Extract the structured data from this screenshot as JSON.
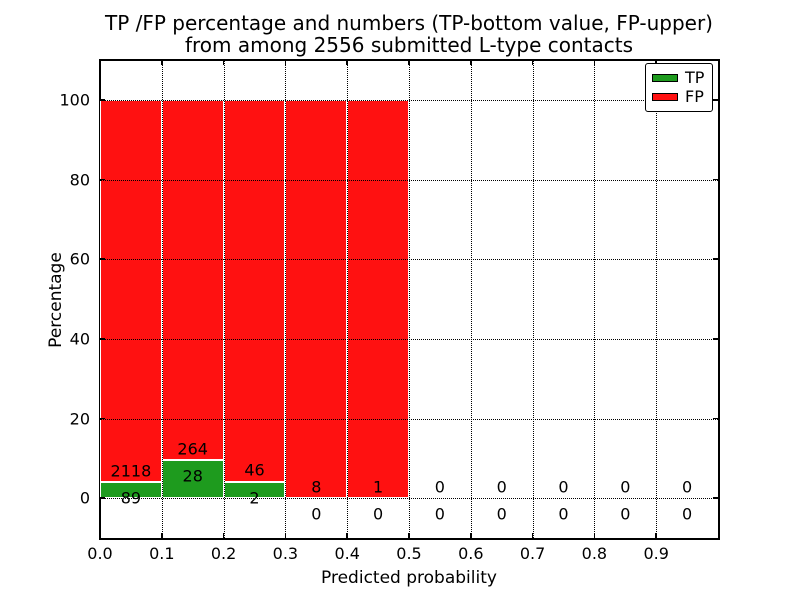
{
  "figure": {
    "title_line1": "TP /FP percentage and numbers (TP-bottom value, FP-upper)",
    "title_line2": "from among 2556 submitted L-type contacts",
    "background": "#ffffff"
  },
  "chart_data": {
    "type": "bar",
    "stacked": true,
    "normalized": "each bar shows TP and FP as percentage of bin total",
    "title": "TP /FP percentage and numbers (TP-bottom value, FP-upper) from among 2556 submitted L-type contacts",
    "xlabel": "Predicted probability",
    "ylabel": "Percentage",
    "xlim": [
      0.0,
      1.0
    ],
    "ylim": [
      -10,
      110
    ],
    "grid": true,
    "grid_style": "dotted",
    "legend_position": "upper right",
    "bin_edges": [
      0.0,
      0.1,
      0.2,
      0.3,
      0.4,
      0.5,
      0.6,
      0.7,
      0.8,
      0.9,
      1.0
    ],
    "x_tick_values": [
      0.0,
      0.1,
      0.2,
      0.3,
      0.4,
      0.5,
      0.6,
      0.7,
      0.8,
      0.9
    ],
    "x_tick_labels": [
      "0.0",
      "0.1",
      "0.2",
      "0.3",
      "0.4",
      "0.5",
      "0.6",
      "0.7",
      "0.8",
      "0.9"
    ],
    "y_tick_values": [
      0,
      20,
      40,
      60,
      80,
      100
    ],
    "y_tick_labels": [
      "0",
      "20",
      "40",
      "60",
      "80",
      "100"
    ],
    "series": [
      {
        "name": "TP",
        "color": "#1e9b1e",
        "counts": [
          89,
          28,
          2,
          0,
          0,
          0,
          0,
          0,
          0,
          0
        ]
      },
      {
        "name": "FP",
        "color": "#ff1111",
        "counts": [
          2118,
          264,
          46,
          8,
          1,
          0,
          0,
          0,
          0,
          0
        ]
      }
    ],
    "bar_edge_color": "#ffffff",
    "total_contacts": 2556
  },
  "legend": {
    "items": [
      {
        "label": "TP",
        "color": "#1e9b1e"
      },
      {
        "label": "FP",
        "color": "#ff1111"
      }
    ]
  },
  "axis": {
    "xlabel": "Predicted probability",
    "ylabel": "Percentage"
  }
}
